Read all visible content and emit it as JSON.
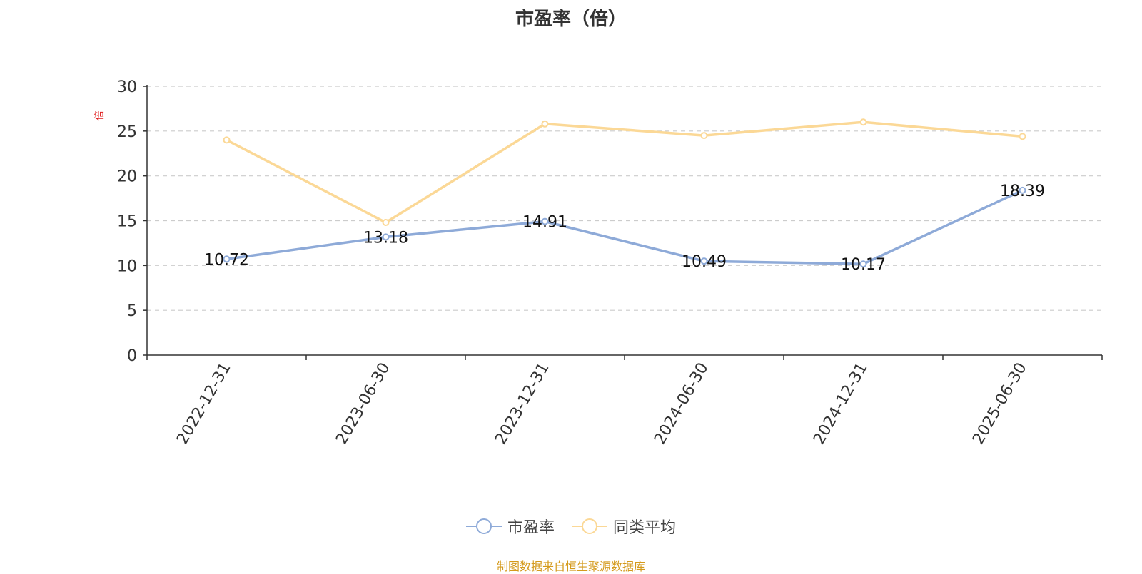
{
  "chart_data": {
    "type": "line",
    "title": "市盈率（倍）",
    "ylabel": "倍",
    "xlabel": "",
    "categories": [
      "2022-12-31",
      "2023-06-30",
      "2023-12-31",
      "2024-06-30",
      "2024-12-31",
      "2025-06-30"
    ],
    "series": [
      {
        "name": "市盈率",
        "color": "#8eaad8",
        "values": [
          10.72,
          13.18,
          14.91,
          10.49,
          10.17,
          18.39
        ],
        "data_labels": [
          "10.72",
          "13.18",
          "14.91",
          "10.49",
          "10.17",
          "18.39"
        ]
      },
      {
        "name": "同类平均",
        "color": "#fbd896",
        "values": [
          24.0,
          14.8,
          25.8,
          24.5,
          26.0,
          24.4
        ]
      }
    ],
    "ylim": [
      0,
      30
    ],
    "yticks": [
      0,
      5,
      10,
      15,
      20,
      25,
      30
    ],
    "grid": true,
    "legend_position": "bottom"
  },
  "source_note": "制图数据来自恒生聚源数据库"
}
